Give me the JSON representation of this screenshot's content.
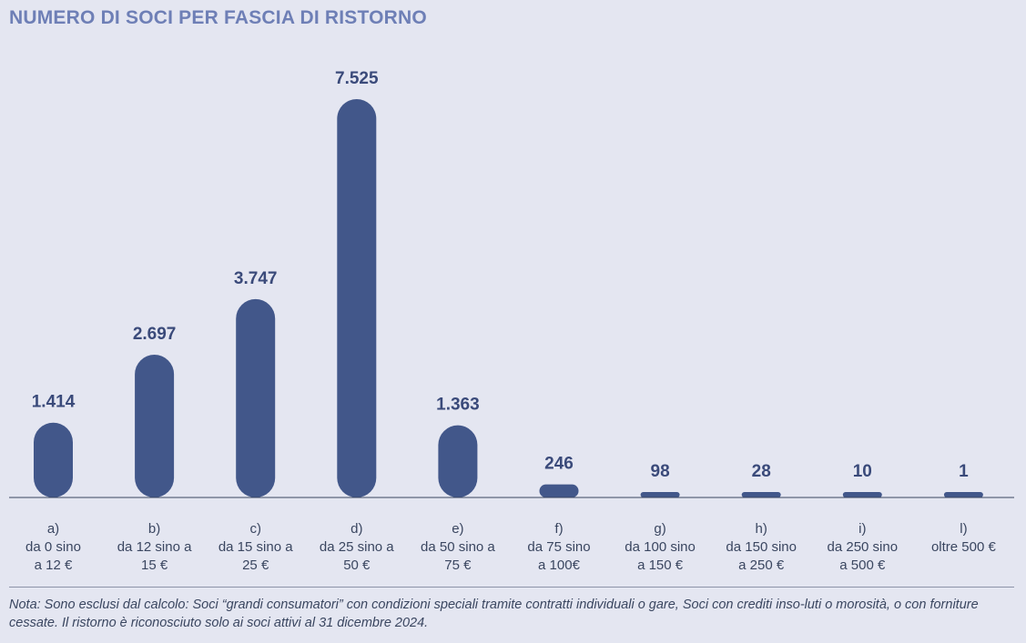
{
  "chart_data": {
    "type": "bar",
    "title": "NUMERO DI SOCI PER FASCIA DI RISTORNO",
    "categories": [
      [
        "a)",
        "da 0 sino",
        "a 12 €"
      ],
      [
        "b)",
        "da 12 sino a",
        "15 €"
      ],
      [
        "c)",
        "da 15 sino a",
        "25 €"
      ],
      [
        "d)",
        "da 25 sino a",
        "50 €"
      ],
      [
        "e)",
        "da 50 sino a",
        "75 €"
      ],
      [
        "f)",
        "da 75 sino",
        "a 100€"
      ],
      [
        "g)",
        "da 100 sino",
        "a 150 €"
      ],
      [
        "h)",
        "da 150 sino",
        "a  250 €"
      ],
      [
        "i)",
        "da 250 sino",
        "a 500 €"
      ],
      [
        "l)",
        "oltre 500 €"
      ]
    ],
    "values": [
      1414,
      2697,
      3747,
      7525,
      1363,
      246,
      98,
      28,
      10,
      1
    ],
    "value_labels": [
      "1.414",
      "2.697",
      "3.747",
      "7.525",
      "1.363",
      "246",
      "98",
      "28",
      "10",
      "1"
    ],
    "ylim": [
      0,
      7525
    ],
    "grid": false,
    "legend": "none",
    "bar_color": "#42578a"
  },
  "note": "Nota: Sono esclusi dal calcolo: Soci “grandi consumatori” con condizioni speciali tramite contratti individuali o gare, Soci con crediti inso-luti o morosità, o con forniture cessate. Il ristorno è riconosciuto solo ai soci attivi al 31 dicembre 2024."
}
